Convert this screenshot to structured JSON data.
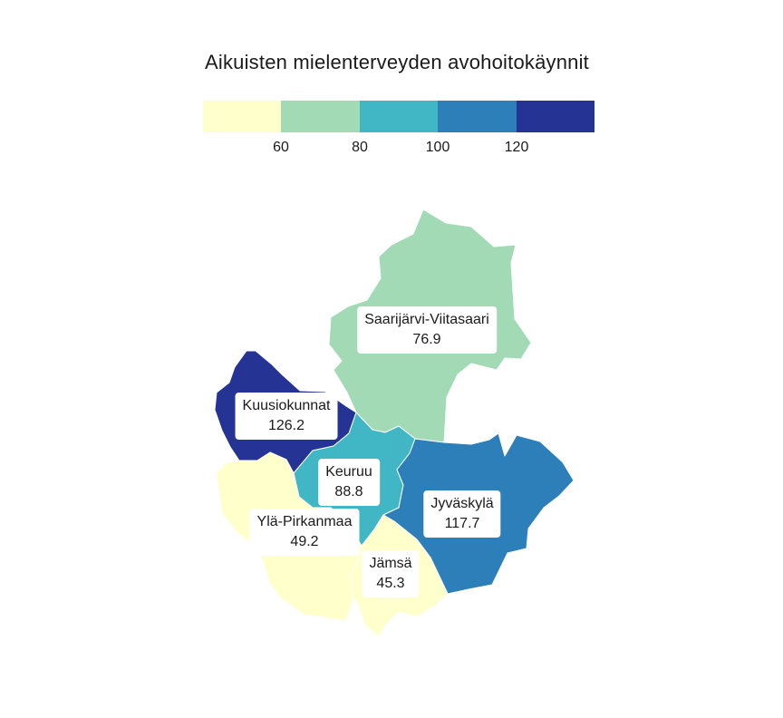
{
  "title": "Aikuisten mielenterveyden avohoitokäynnit",
  "legend": {
    "colors": [
      "#ffffcc",
      "#a1dab4",
      "#41b6c4",
      "#2c7fb8",
      "#253494"
    ],
    "ticks": [
      "60",
      "80",
      "100",
      "120"
    ]
  },
  "regions": [
    {
      "name": "Saarijärvi-Viitasaari",
      "value": "76.9",
      "color": "#a1dab4"
    },
    {
      "name": "Kuusiokunnat",
      "value": "126.2",
      "color": "#253494"
    },
    {
      "name": "Keuruu",
      "value": "88.8",
      "color": "#41b6c4"
    },
    {
      "name": "Jyväskylä",
      "value": "117.7",
      "color": "#2c7fb8"
    },
    {
      "name": "Ylä-Pirkanmaa",
      "value": "49.2",
      "color": "#ffffcc"
    },
    {
      "name": "Jämsä",
      "value": "45.3",
      "color": "#ffffcc"
    }
  ]
}
